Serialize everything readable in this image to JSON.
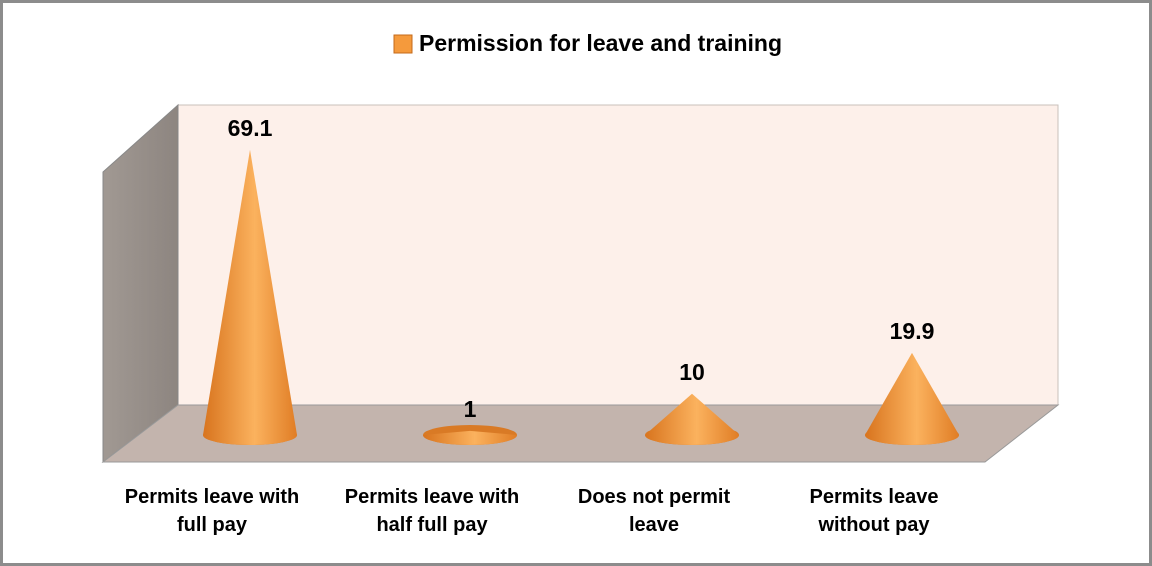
{
  "chart_data": {
    "type": "cone",
    "categories": [
      "Permits leave with full pay",
      "Permits leave with half full pay",
      "Does not permit leave",
      "Permits leave without pay"
    ],
    "series": [
      {
        "name": "Permission for leave and training",
        "color": "#f59a3c",
        "values": [
          69.1,
          1,
          10,
          19.9
        ]
      }
    ],
    "ylim": [
      0,
      70
    ]
  }
}
